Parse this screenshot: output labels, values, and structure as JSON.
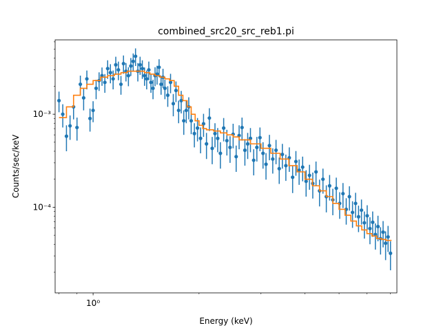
{
  "chart_data": {
    "type": "scatter",
    "title": "combined_src20_src_reb1.pi",
    "xlabel": "Energy (keV)",
    "ylabel": "Counts/sec/keV",
    "x_scale": "log",
    "y_scale": "log",
    "xlim": [
      0.78,
      7.3
    ],
    "ylim": [
      1.2e-05,
      0.0063
    ],
    "x_ticks": [
      {
        "value": 1,
        "label": "10⁰"
      }
    ],
    "y_ticks": [
      {
        "value": 0.0001,
        "label": "10⁻⁴"
      },
      {
        "value": 0.001,
        "label": "10⁻³"
      }
    ],
    "grid": false,
    "series": [
      {
        "kind": "errorbar",
        "color": "#1f77b4",
        "x": [
          0.8,
          0.82,
          0.84,
          0.86,
          0.88,
          0.9,
          0.92,
          0.94,
          0.96,
          0.98,
          1.0,
          1.02,
          1.04,
          1.06,
          1.08,
          1.1,
          1.12,
          1.14,
          1.16,
          1.18,
          1.2,
          1.22,
          1.24,
          1.26,
          1.28,
          1.3,
          1.32,
          1.34,
          1.36,
          1.38,
          1.4,
          1.42,
          1.44,
          1.46,
          1.48,
          1.5,
          1.52,
          1.54,
          1.56,
          1.58,
          1.6,
          1.63,
          1.66,
          1.69,
          1.72,
          1.75,
          1.78,
          1.81,
          1.84,
          1.87,
          1.9,
          1.94,
          1.98,
          2.02,
          2.06,
          2.1,
          2.14,
          2.18,
          2.22,
          2.26,
          2.3,
          2.35,
          2.4,
          2.45,
          2.5,
          2.55,
          2.6,
          2.65,
          2.7,
          2.75,
          2.8,
          2.86,
          2.92,
          2.98,
          3.04,
          3.1,
          3.17,
          3.24,
          3.31,
          3.38,
          3.45,
          3.53,
          3.61,
          3.69,
          3.77,
          3.85,
          3.94,
          4.03,
          4.12,
          4.21,
          4.3,
          4.4,
          4.5,
          4.6,
          4.7,
          4.8,
          4.91,
          5.02,
          5.13,
          5.24,
          5.35,
          5.46,
          5.57,
          5.68,
          5.79,
          5.9,
          6.01,
          6.12,
          6.23,
          6.34,
          6.45,
          6.56,
          6.67,
          6.78,
          6.89,
          7.0
        ],
        "y": [
          0.0014,
          0.001,
          0.00058,
          0.00075,
          0.0012,
          0.00072,
          0.0021,
          0.0015,
          0.0024,
          0.0009,
          0.0011,
          0.0019,
          0.0023,
          0.0026,
          0.0022,
          0.0031,
          0.0028,
          0.0024,
          0.0034,
          0.003,
          0.0021,
          0.0035,
          0.0029,
          0.0026,
          0.0033,
          0.0037,
          0.0042,
          0.0029,
          0.0034,
          0.0031,
          0.0026,
          0.0024,
          0.003,
          0.0022,
          0.0019,
          0.0026,
          0.0027,
          0.0032,
          0.0021,
          0.0025,
          0.0019,
          0.0016,
          0.0022,
          0.0013,
          0.0018,
          0.0011,
          0.0014,
          0.00085,
          0.0011,
          0.0012,
          0.00085,
          0.00062,
          0.00071,
          0.00055,
          0.00079,
          0.00048,
          0.00091,
          0.00043,
          0.00062,
          0.00055,
          0.00038,
          0.00071,
          0.00052,
          0.00044,
          0.00061,
          0.00035,
          0.00059,
          0.00072,
          0.00041,
          0.00048,
          0.00055,
          0.00032,
          0.00044,
          0.00056,
          0.00038,
          0.00029,
          0.00046,
          0.00033,
          0.00041,
          0.00026,
          0.00037,
          0.00028,
          0.00034,
          0.00021,
          0.00031,
          0.00025,
          0.00027,
          0.00019,
          0.00022,
          0.00018,
          0.00024,
          0.00015,
          0.0002,
          0.00013,
          0.00017,
          0.00012,
          0.00016,
          0.00011,
          0.00014,
          9.5e-05,
          0.00013,
          8.8e-05,
          0.00011,
          7.9e-05,
          9.3e-05,
          6.8e-05,
          8.1e-05,
          5.9e-05,
          6.9e-05,
          5.1e-05,
          6.2e-05,
          4.6e-05,
          5.4e-05,
          4.1e-05,
          4.8e-05,
          3.2e-05
        ],
        "yerr": [
          0.00035,
          0.00028,
          0.00018,
          0.00022,
          0.00032,
          0.0002,
          0.0005,
          0.0004,
          0.00055,
          0.00025,
          0.00028,
          0.00045,
          0.00052,
          0.00058,
          0.0005,
          0.0007,
          0.00065,
          0.00055,
          0.00075,
          0.00068,
          0.00048,
          0.00078,
          0.00065,
          0.0006,
          0.00072,
          0.0008,
          0.0009,
          0.00065,
          0.00075,
          0.0007,
          0.00058,
          0.00055,
          0.00068,
          0.0005,
          0.00045,
          0.0006,
          0.00062,
          0.0007,
          0.00048,
          0.00058,
          0.00045,
          0.0004,
          0.00052,
          0.00035,
          0.00045,
          0.0003,
          0.00038,
          0.00025,
          0.0003,
          0.00032,
          0.00024,
          0.00018,
          0.0002,
          0.00017,
          0.00022,
          0.00015,
          0.00025,
          0.00014,
          0.00018,
          0.00016,
          0.00012,
          0.0002,
          0.00016,
          0.00014,
          0.00018,
          0.00011,
          0.00017,
          0.0002,
          0.00013,
          0.00015,
          0.00016,
          0.0001,
          0.00013,
          0.00016,
          0.00012,
          9.2e-05,
          0.00014,
          0.0001,
          0.00012,
          8.2e-05,
          0.00011,
          8.8e-05,
          0.0001,
          6.8e-05,
          9.2e-05,
          7.6e-05,
          8e-05,
          6e-05,
          6.6e-05,
          5.6e-05,
          7e-05,
          4.8e-05,
          6e-05,
          4.2e-05,
          5.2e-05,
          3.8e-05,
          4.8e-05,
          3.5e-05,
          4.2e-05,
          3e-05,
          3.8e-05,
          2.8e-05,
          3.3e-05,
          2.5e-05,
          2.8e-05,
          2.2e-05,
          2.4e-05,
          1.9e-05,
          2.1e-05,
          1.6e-05,
          1.9e-05,
          1.5e-05,
          1.7e-05,
          1.4e-05,
          1.5e-05,
          1.1e-05
        ]
      },
      {
        "kind": "model-step",
        "color": "#ff7f0e",
        "x": [
          0.8,
          0.84,
          0.88,
          0.92,
          0.96,
          1.0,
          1.05,
          1.1,
          1.15,
          1.2,
          1.25,
          1.3,
          1.35,
          1.4,
          1.45,
          1.5,
          1.55,
          1.6,
          1.65,
          1.7,
          1.75,
          1.8,
          1.85,
          1.9,
          1.95,
          2.0,
          2.05,
          2.1,
          2.2,
          2.3,
          2.4,
          2.5,
          2.6,
          2.8,
          3.0,
          3.2,
          3.4,
          3.6,
          3.8,
          4.0,
          4.2,
          4.4,
          4.6,
          4.8,
          5.0,
          5.2,
          5.4,
          5.6,
          5.8,
          6.0,
          6.2,
          6.4,
          6.6,
          6.8,
          7.05
        ],
        "y": [
          0.00092,
          0.0012,
          0.0016,
          0.0019,
          0.0021,
          0.0023,
          0.0025,
          0.0026,
          0.0027,
          0.0028,
          0.0029,
          0.0029,
          0.0029,
          0.0028,
          0.0027,
          0.0026,
          0.0025,
          0.0024,
          0.0023,
          0.002,
          0.0016,
          0.0014,
          0.0012,
          0.001,
          0.00085,
          0.00076,
          0.0007,
          0.00068,
          0.00066,
          0.00063,
          0.0006,
          0.00057,
          0.00053,
          0.00048,
          0.00043,
          0.00038,
          0.00033,
          0.00028,
          0.00024,
          0.0002,
          0.00017,
          0.00015,
          0.00013,
          0.00011,
          9.5e-05,
          8.2e-05,
          7.1e-05,
          6.3e-05,
          5.7e-05,
          5.2e-05,
          4.9e-05,
          4.6e-05,
          4.5e-05,
          4.4e-05,
          4.4e-05
        ]
      }
    ]
  }
}
